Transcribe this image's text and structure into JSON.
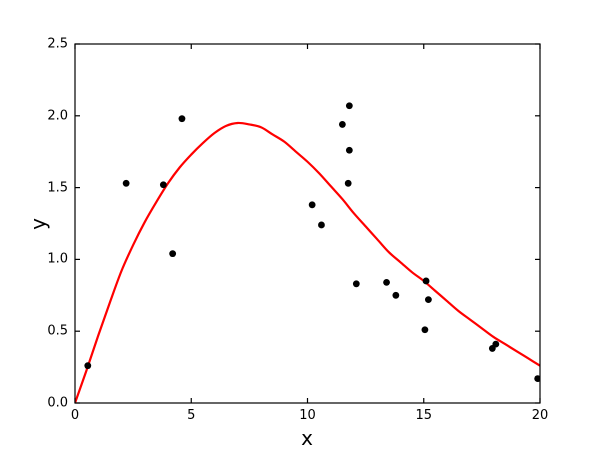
{
  "chart_data": {
    "type": "scatter",
    "title": "",
    "xlabel": "x",
    "ylabel": "y",
    "xlim": [
      0,
      20
    ],
    "ylim": [
      0.0,
      2.5
    ],
    "grid": false,
    "legend": null,
    "frame_color": "#000000",
    "background_color": "#ffffff",
    "x_ticks": [
      {
        "value": 0,
        "label": "0"
      },
      {
        "value": 5,
        "label": "5"
      },
      {
        "value": 10,
        "label": "10"
      },
      {
        "value": 15,
        "label": "15"
      },
      {
        "value": 20,
        "label": "20"
      }
    ],
    "y_ticks": [
      {
        "value": 0.0,
        "label": "0.0"
      },
      {
        "value": 0.5,
        "label": "0.5"
      },
      {
        "value": 1.0,
        "label": "1.0"
      },
      {
        "value": 1.5,
        "label": "1.5"
      },
      {
        "value": 2.0,
        "label": "2.0"
      },
      {
        "value": 2.5,
        "label": "2.5"
      }
    ],
    "series": [
      {
        "name": "scatter-points",
        "type": "scatter",
        "color": "#000000",
        "marker": "circle",
        "marker_radius": 3.4,
        "points": [
          [
            0.55,
            0.26
          ],
          [
            2.2,
            1.53
          ],
          [
            3.8,
            1.52
          ],
          [
            4.2,
            1.04
          ],
          [
            4.6,
            1.98
          ],
          [
            10.2,
            1.38
          ],
          [
            10.6,
            1.24
          ],
          [
            11.5,
            1.94
          ],
          [
            11.8,
            2.07
          ],
          [
            11.8,
            1.76
          ],
          [
            11.75,
            1.53
          ],
          [
            12.1,
            0.83
          ],
          [
            13.4,
            0.84
          ],
          [
            13.8,
            0.75
          ],
          [
            15.1,
            0.85
          ],
          [
            15.2,
            0.72
          ],
          [
            15.05,
            0.51
          ],
          [
            17.95,
            0.38
          ],
          [
            18.1,
            0.41
          ],
          [
            19.9,
            0.17
          ]
        ]
      },
      {
        "name": "fit-curve",
        "type": "line",
        "color": "#ff0000",
        "line_width": 2.2,
        "points": [
          [
            0,
            0.0
          ],
          [
            0.5,
            0.23
          ],
          [
            1,
            0.47
          ],
          [
            1.5,
            0.7
          ],
          [
            2,
            0.92
          ],
          [
            2.5,
            1.1
          ],
          [
            3,
            1.26
          ],
          [
            3.5,
            1.4
          ],
          [
            4,
            1.53
          ],
          [
            4.5,
            1.64
          ],
          [
            5,
            1.73
          ],
          [
            5.5,
            1.81
          ],
          [
            6,
            1.88
          ],
          [
            6.5,
            1.93
          ],
          [
            7,
            1.95
          ],
          [
            7.5,
            1.94
          ],
          [
            8,
            1.92
          ],
          [
            8.5,
            1.87
          ],
          [
            9,
            1.82
          ],
          [
            9.5,
            1.75
          ],
          [
            10,
            1.68
          ],
          [
            10.5,
            1.6
          ],
          [
            11,
            1.51
          ],
          [
            11.5,
            1.42
          ],
          [
            12,
            1.32
          ],
          [
            12.5,
            1.23
          ],
          [
            13,
            1.14
          ],
          [
            13.5,
            1.05
          ],
          [
            14,
            0.98
          ],
          [
            14.5,
            0.91
          ],
          [
            15,
            0.85
          ],
          [
            15.5,
            0.78
          ],
          [
            16,
            0.71
          ],
          [
            16.5,
            0.64
          ],
          [
            17,
            0.58
          ],
          [
            17.5,
            0.52
          ],
          [
            18,
            0.46
          ],
          [
            18.5,
            0.41
          ],
          [
            19,
            0.36
          ],
          [
            19.5,
            0.31
          ],
          [
            20,
            0.26
          ]
        ]
      }
    ]
  }
}
